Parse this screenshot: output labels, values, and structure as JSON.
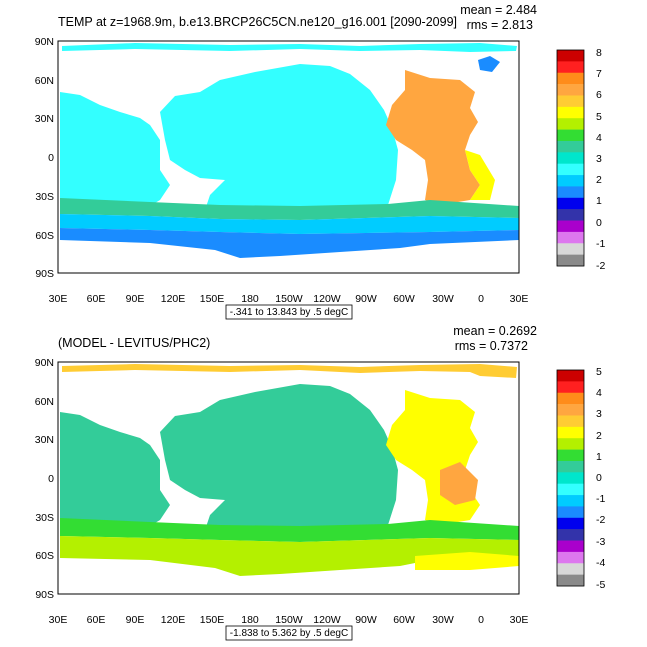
{
  "figure": {
    "panels": [
      {
        "id": "top",
        "title": "TEMP at z=1968.9m, b.e13.BRCP26C5CN.ne120_g16.001 [2090-2099]",
        "mean_label": "mean = 2.484",
        "rms_label": "rms = 2.813",
        "info_label": "-.341 to 13.843 by .5 degC",
        "y_ticks": [
          "90N",
          "60N",
          "30N",
          "0",
          "30S",
          "60S",
          "90S"
        ],
        "x_ticks": [
          "30E",
          "60E",
          "90E",
          "120E",
          "150E",
          "180",
          "150W",
          "120W",
          "90W",
          "60W",
          "30W",
          "0",
          "30E"
        ],
        "colorbar": {
          "labels": [
            "8",
            "7",
            "6",
            "5",
            "4",
            "3",
            "2",
            "1",
            "0",
            "-1",
            "-2"
          ],
          "colors": [
            "#cc0000",
            "#ff2020",
            "#ff8c1a",
            "#ffa640",
            "#ffcc33",
            "#ffff00",
            "#b4f000",
            "#33dd33",
            "#33cc99",
            "#00e6cc",
            "#33ffff",
            "#00ccff",
            "#1a8cff",
            "#0000ee",
            "#3333aa",
            "#aa00cc",
            "#dd77ee",
            "#d8d8d8",
            "#8a8a8a"
          ]
        }
      },
      {
        "id": "bottom",
        "title": "(MODEL - LEVITUS/PHC2)",
        "mean_label": "mean = 0.2692",
        "rms_label": "rms = 0.7372",
        "info_label": "-1.838 to 5.362 by .5 degC",
        "y_ticks": [
          "90N",
          "60N",
          "30N",
          "0",
          "30S",
          "60S",
          "90S"
        ],
        "x_ticks": [
          "30E",
          "60E",
          "90E",
          "120E",
          "150E",
          "180",
          "150W",
          "120W",
          "90W",
          "60W",
          "30W",
          "0",
          "30E"
        ],
        "colorbar": {
          "labels": [
            "5",
            "4",
            "3",
            "2",
            "1",
            "0",
            "-1",
            "-2",
            "-3",
            "-4",
            "-5"
          ],
          "colors": [
            "#cc0000",
            "#ff2020",
            "#ff8c1a",
            "#ffa640",
            "#ffcc33",
            "#ffff00",
            "#b4f000",
            "#33dd33",
            "#33cc99",
            "#00e6cc",
            "#33ffff",
            "#00ccff",
            "#1a8cff",
            "#0000ee",
            "#3333aa",
            "#aa00cc",
            "#dd77ee",
            "#d8d8d8",
            "#8a8a8a"
          ]
        }
      }
    ]
  }
}
